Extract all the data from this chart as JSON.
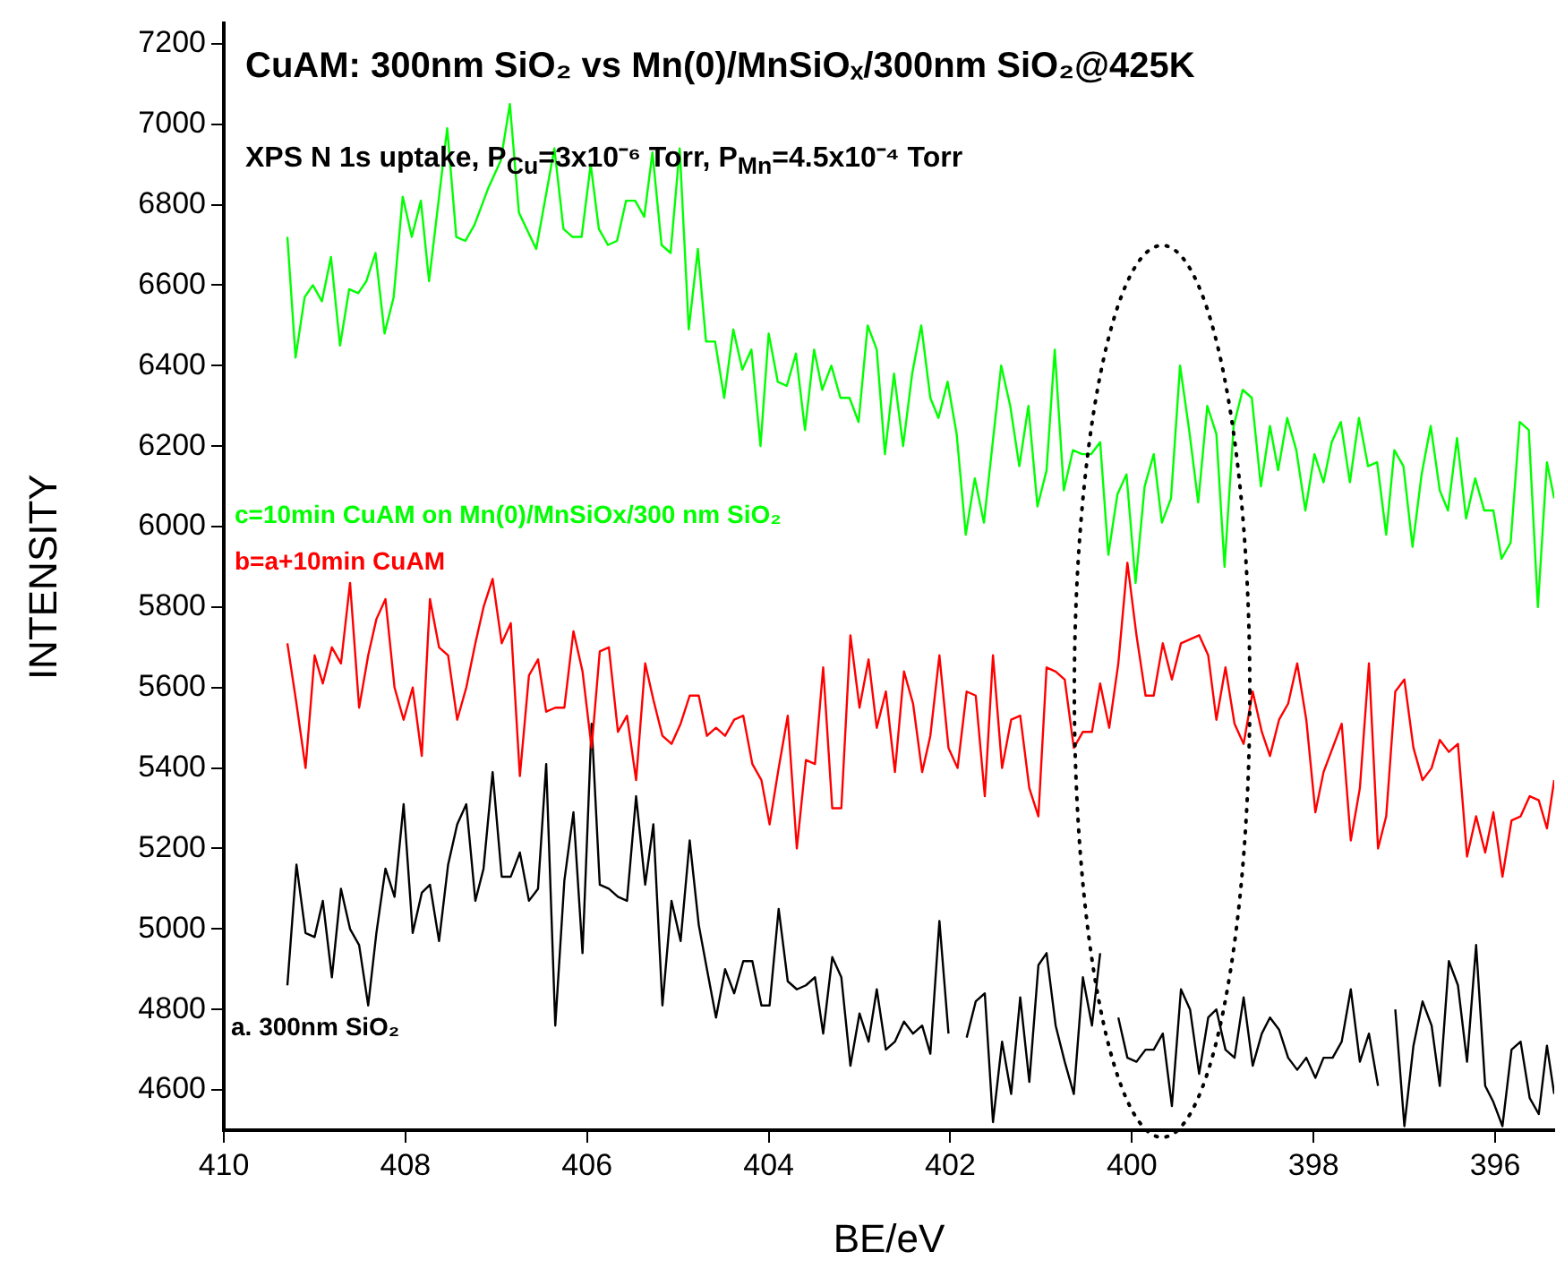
{
  "chart_data": {
    "type": "line",
    "title": "CuAM: 300nm SiO₂ vs Mn(0)/MnSiOₓ/300nm SiO₂@425K",
    "subtitle": "XPS N 1s uptake, P$_{Cu}$=3x10⁻⁶ Torr, P$_{Mn}$=4.5x10⁻⁴ Torr",
    "xlabel": "BE/eV",
    "ylabel": "INTENSITY",
    "xlim": [
      410,
      395.35
    ],
    "xticks": [
      410,
      408,
      406,
      404,
      402,
      400,
      398,
      396
    ],
    "ylim": [
      4500,
      7250
    ],
    "yticks": [
      4600,
      4800,
      5000,
      5200,
      5400,
      5600,
      5800,
      6000,
      6200,
      6400,
      6600,
      6800,
      7000,
      7200
    ],
    "x": [
      409.3,
      409.2,
      409.1,
      409.0,
      408.91,
      408.81,
      408.71,
      408.61,
      408.51,
      408.41,
      408.32,
      408.22,
      408.12,
      408.02,
      407.92,
      407.82,
      407.73,
      407.63,
      407.53,
      407.43,
      407.33,
      407.23,
      407.14,
      407.04,
      406.94,
      406.84,
      406.74,
      406.64,
      406.54,
      406.45,
      406.35,
      406.25,
      406.15,
      406.05,
      405.95,
      405.86,
      405.76,
      405.66,
      405.56,
      405.46,
      405.36,
      405.27,
      405.17,
      405.07,
      404.97,
      404.87,
      404.77,
      404.68,
      404.58,
      404.48,
      404.38,
      404.28,
      404.18,
      404.08,
      403.99,
      403.89,
      403.79,
      403.69,
      403.59,
      403.49,
      403.4,
      403.3,
      403.2,
      403.1,
      403.0,
      402.9,
      402.81,
      402.71,
      402.61,
      402.51,
      402.41,
      402.31,
      402.22,
      402.12,
      402.02,
      401.92,
      401.82,
      401.72,
      401.62,
      401.53,
      401.43,
      401.33,
      401.23,
      401.13,
      401.03,
      400.94,
      400.84,
      400.74,
      400.64,
      400.54,
      400.44,
      400.35,
      400.25,
      400.15,
      400.05,
      399.95,
      399.85,
      399.76,
      399.66,
      399.56,
      399.46,
      399.36,
      399.26,
      399.16,
      399.07,
      398.97,
      398.87,
      398.77,
      398.67,
      398.57,
      398.48,
      398.38,
      398.28,
      398.18,
      398.08,
      397.98,
      397.89,
      397.79,
      397.69,
      397.59,
      397.49,
      397.39,
      397.29,
      397.2,
      397.1,
      397.0,
      396.9,
      396.8,
      396.7,
      396.61,
      396.51,
      396.41,
      396.31,
      396.21,
      396.11,
      396.02,
      395.92,
      395.82,
      395.72,
      395.62,
      395.52,
      395.43,
      395.35
    ],
    "series": [
      {
        "name": "c=10min CuAM on Mn(0)/MnSiOx/300 nm SiO₂",
        "color": "#00ff00",
        "x": [
          409.3,
          409.21,
          409.11,
          409.02,
          408.92,
          408.82,
          408.72,
          408.62,
          408.52,
          408.43,
          408.33,
          408.23,
          408.13,
          408.03,
          407.93,
          407.83,
          407.74,
          407.54,
          407.44,
          407.34,
          407.24,
          407.09,
          406.95,
          406.85,
          406.75,
          406.56,
          406.36,
          406.26,
          406.16,
          406.06,
          405.96,
          405.87,
          405.77,
          405.67,
          405.57,
          405.47,
          405.37,
          405.28,
          405.18,
          405.08,
          404.98,
          404.88,
          404.78,
          404.69,
          404.59,
          404.49,
          404.39,
          404.29,
          404.19,
          404.09,
          404.0,
          403.9,
          403.8,
          403.7,
          403.6,
          403.5,
          403.41,
          403.31,
          403.21,
          403.11,
          403.01,
          402.91,
          402.81,
          402.72,
          402.62,
          402.52,
          402.42,
          402.32,
          402.22,
          402.13,
          402.03,
          401.93,
          401.83,
          401.73,
          401.63,
          401.44,
          401.34,
          401.24,
          401.14,
          401.04,
          400.94,
          400.85,
          400.75,
          400.65,
          400.55,
          400.45,
          400.35,
          400.26,
          400.16,
          400.06,
          399.96,
          399.86,
          399.76,
          399.67,
          399.57,
          399.47,
          399.37,
          399.27,
          399.17,
          399.07,
          398.98,
          398.88,
          398.78,
          398.68,
          398.58,
          398.48,
          398.39,
          398.29,
          398.19,
          398.09,
          397.99,
          397.89,
          397.8,
          397.7,
          397.6,
          397.5,
          397.4,
          397.3,
          397.2,
          397.11,
          397.01,
          396.91,
          396.81,
          396.71,
          396.61,
          396.52,
          396.42,
          396.32,
          396.22,
          396.12,
          396.02,
          395.93,
          395.83,
          395.73,
          395.63,
          395.53,
          395.43,
          395.35
        ],
        "values": [
          6720,
          6420,
          6570,
          6600,
          6560,
          6670,
          6450,
          6590,
          6580,
          6610,
          6680,
          6480,
          6570,
          6820,
          6720,
          6810,
          6610,
          6990,
          6720,
          6710,
          6750,
          6840,
          6910,
          7050,
          6780,
          6690,
          6940,
          6740,
          6720,
          6720,
          6900,
          6740,
          6700,
          6710,
          6810,
          6810,
          6770,
          6930,
          6700,
          6680,
          6940,
          6490,
          6690,
          6460,
          6460,
          6320,
          6490,
          6390,
          6440,
          6200,
          6480,
          6360,
          6350,
          6430,
          6240,
          6440,
          6340,
          6400,
          6320,
          6320,
          6260,
          6500,
          6440,
          6180,
          6380,
          6200,
          6380,
          6500,
          6320,
          6270,
          6360,
          6230,
          5980,
          6120,
          6010,
          6400,
          6300,
          6150,
          6300,
          6050,
          6140,
          6440,
          6090,
          6190,
          6180,
          6180,
          6210,
          5930,
          6080,
          6130,
          5860,
          6100,
          6180,
          6010,
          6070,
          6400,
          6240,
          6060,
          6300,
          6230,
          5900,
          6250,
          6340,
          6320,
          6100,
          6250,
          6140,
          6270,
          6190,
          6040,
          6180,
          6110,
          6210,
          6260,
          6110,
          6270,
          6150,
          6160,
          5980,
          6190,
          6150,
          5950,
          6130,
          6250,
          6090,
          6040,
          6220,
          6020,
          6120,
          6040,
          6040,
          5920,
          5960,
          6260,
          6240,
          5800,
          6160,
          6070
        ]
      },
      {
        "name": "b=a+10min CuAM",
        "color": "#ff0000",
        "values": [
          5710,
          5560,
          5400,
          5680,
          5610,
          5700,
          5660,
          5860,
          5550,
          5680,
          5770,
          5820,
          5600,
          5520,
          5600,
          5430,
          5820,
          5700,
          5680,
          5520,
          5600,
          5710,
          5800,
          5870,
          5710,
          5760,
          5380,
          5630,
          5670,
          5540,
          5550,
          5550,
          5740,
          5640,
          5450,
          5690,
          5700,
          5490,
          5530,
          5370,
          5660,
          5570,
          5480,
          5460,
          5510,
          5580,
          5580,
          5480,
          5500,
          5480,
          5520,
          5530,
          5410,
          5370,
          5260,
          5400,
          5530,
          5200,
          5420,
          5410,
          5650,
          5300,
          5300,
          5730,
          5550,
          5670,
          5500,
          5590,
          5390,
          5640,
          5560,
          5390,
          5480,
          5680,
          5450,
          5400,
          5590,
          5580,
          5330,
          5680,
          5400,
          5520,
          5530,
          5350,
          5280,
          5650,
          5640,
          5620,
          5450,
          5490,
          5490,
          5610,
          5500,
          5660,
          5910,
          5730,
          5580,
          5580,
          5710,
          5620,
          5710,
          5720,
          5730,
          5680,
          5520,
          5650,
          5510,
          5460,
          5590,
          5490,
          5430,
          5520,
          5560,
          5660,
          5520,
          5290,
          5390,
          5450,
          5510,
          5220,
          5350,
          5660,
          5200,
          5280,
          5590,
          5620,
          5450,
          5370,
          5400,
          5470,
          5440,
          5460,
          5180,
          5280,
          5190,
          5290,
          5130,
          5270,
          5280,
          5330,
          5320,
          5250,
          5370
        ]
      },
      {
        "name": "a. 300nm SiO₂",
        "color": "#000000",
        "values": [
          4860,
          5160,
          4990,
          4980,
          5070,
          4880,
          5100,
          5000,
          4960,
          4810,
          4990,
          5150,
          5080,
          5310,
          4990,
          5090,
          5110,
          4970,
          5160,
          5260,
          5310,
          5070,
          5150,
          5390,
          5130,
          5130,
          5190,
          5070,
          5100,
          5410,
          4760,
          5120,
          5290,
          4940,
          5510,
          5110,
          5100,
          5080,
          5070,
          5330,
          5110,
          5260,
          4810,
          5070,
          4970,
          5220,
          5010,
          4900,
          4780,
          4900,
          4840,
          4920,
          4920,
          4810,
          4810,
          5050,
          4870,
          4850,
          4860,
          4880,
          4740,
          4930,
          4880,
          4660,
          4790,
          4720,
          4850,
          4700,
          4720,
          4770,
          4740,
          4760,
          4690,
          5020,
          4740,
          null,
          4730,
          4820,
          4840,
          4520,
          4720,
          4590,
          4830,
          4620,
          4910,
          4940,
          4760,
          4670,
          4590,
          4880,
          4760,
          4940,
          null,
          4780,
          4680,
          4670,
          4700,
          4700,
          4740,
          4560,
          4850,
          4800,
          4640,
          4780,
          4800,
          4700,
          4680,
          4830,
          4660,
          4740,
          4780,
          4750,
          4680,
          4650,
          4680,
          4630,
          4680,
          4680,
          4720,
          4850,
          4670,
          4740,
          4610,
          null,
          4800,
          4510,
          4710,
          4820,
          4760,
          4610,
          4920,
          4860,
          4670,
          4960,
          4610,
          4570,
          4510,
          4700,
          4720,
          4580,
          4540,
          4710,
          4590
        ]
      }
    ]
  }
}
